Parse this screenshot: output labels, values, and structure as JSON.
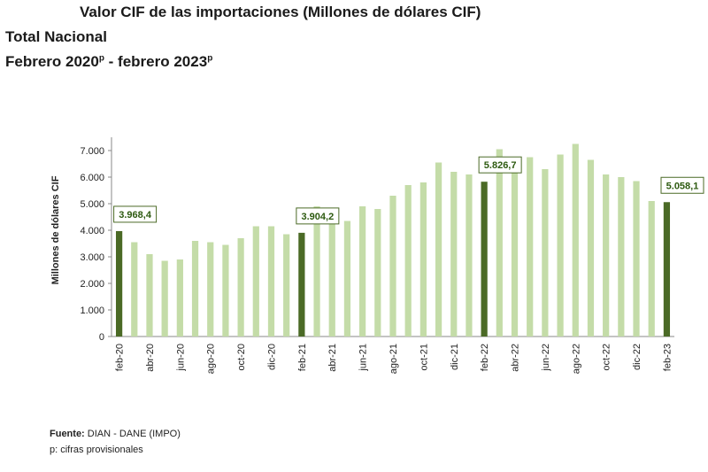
{
  "header": {
    "title": "Valor CIF de las importaciones (Millones de dólares CIF)",
    "subtitle": "Total Nacional",
    "period_start": "Febrero 2020",
    "period_start_mark": "p",
    "period_sep": " - febrero 2023",
    "period_end_mark": "p"
  },
  "footer": {
    "source_label": "Fuente:",
    "source_text": " DIAN - DANE (IMPO)",
    "note": "p: cifras provisionales"
  },
  "colors": {
    "bar": "#c4dca8",
    "highlight": "#4b6a26",
    "label_border": "#4b6a26",
    "label_text": "#2d5a10",
    "axis": "#888888"
  },
  "chart_data": {
    "type": "bar",
    "ylabel": "Millones de dólares CIF",
    "ylim": [
      0,
      7000
    ],
    "yticks": [
      0,
      1000,
      2000,
      3000,
      4000,
      5000,
      6000,
      7000
    ],
    "ytick_labels": [
      "0",
      "1.000",
      "2.000",
      "3.000",
      "4.000",
      "5.000",
      "6.000",
      "7.000"
    ],
    "grid": false,
    "categories": [
      "feb-20",
      "mar-20",
      "abr-20",
      "may-20",
      "jun-20",
      "jul-20",
      "ago-20",
      "sep-20",
      "oct-20",
      "nov-20",
      "dic-20",
      "ene-21",
      "feb-21",
      "mar-21",
      "abr-21",
      "may-21",
      "jun-21",
      "jul-21",
      "ago-21",
      "sep-21",
      "oct-21",
      "nov-21",
      "dic-21",
      "ene-22",
      "feb-22",
      "mar-22",
      "abr-22",
      "may-22",
      "jun-22",
      "jul-22",
      "ago-22",
      "sep-22",
      "oct-22",
      "nov-22",
      "dic-22",
      "ene-23",
      "feb-23"
    ],
    "x_labels_shown": [
      "feb-20",
      "abr-20",
      "jun-20",
      "ago-20",
      "oct-20",
      "dic-20",
      "feb-21",
      "abr-21",
      "jun-21",
      "ago-21",
      "oct-21",
      "dic-21",
      "feb-22",
      "abr-22",
      "jun-22",
      "ago-22",
      "oct-22",
      "dic-22",
      "feb-23"
    ],
    "values": [
      3968.4,
      3550,
      3100,
      2850,
      2900,
      3600,
      3550,
      3450,
      3700,
      4150,
      4150,
      3850,
      3904.2,
      4900,
      4700,
      4350,
      4900,
      4800,
      5300,
      5700,
      5800,
      6550,
      6200,
      6100,
      5826.7,
      7050,
      6350,
      6750,
      6300,
      6850,
      7250,
      6650,
      6100,
      6000,
      5850,
      5100,
      5058.1
    ],
    "highlighted": [
      "feb-20",
      "feb-21",
      "feb-22",
      "feb-23"
    ],
    "data_labels": [
      {
        "category": "feb-20",
        "text": "3.968,4"
      },
      {
        "category": "feb-21",
        "text": "3.904,2"
      },
      {
        "category": "feb-22",
        "text": "5.826,7"
      },
      {
        "category": "feb-23",
        "text": "5.058,1"
      }
    ]
  }
}
